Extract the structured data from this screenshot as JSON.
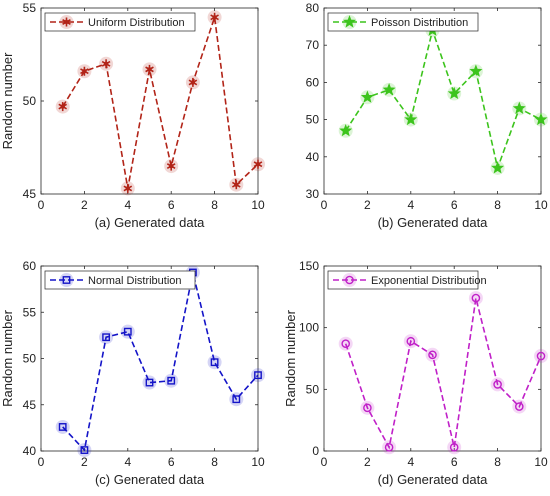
{
  "chart_data": [
    {
      "type": "line",
      "caption": "(a) Generated data",
      "ylabel": "Random number",
      "xlim": [
        0,
        10
      ],
      "ylim": [
        45,
        55
      ],
      "xticks": [
        "0",
        "2",
        "4",
        "6",
        "8",
        "10"
      ],
      "yticks": [
        "45",
        "50",
        "55"
      ],
      "legend_position": "top-left",
      "color": "#b22418",
      "marker": "asterisk",
      "series": [
        {
          "name": "Uniform Distribution",
          "x": [
            1,
            2,
            3,
            4,
            5,
            6,
            7,
            8,
            9,
            10
          ],
          "values": [
            49.7,
            51.6,
            52.0,
            45.3,
            51.7,
            46.5,
            51.0,
            54.5,
            45.5,
            46.6
          ]
        }
      ]
    },
    {
      "type": "line",
      "caption": "(b) Generated data",
      "ylabel": "",
      "xlim": [
        0,
        10
      ],
      "ylim": [
        30,
        80
      ],
      "xticks": [
        "0",
        "2",
        "4",
        "6",
        "8",
        "10"
      ],
      "yticks": [
        "30",
        "40",
        "50",
        "60",
        "70",
        "80"
      ],
      "legend_position": "top-left",
      "color": "#3cc41c",
      "marker": "star",
      "series": [
        {
          "name": "Poisson Distribution",
          "x": [
            1,
            2,
            3,
            4,
            5,
            6,
            7,
            8,
            9,
            10
          ],
          "values": [
            47,
            56,
            58,
            50,
            74,
            57,
            63,
            37,
            53,
            50
          ]
        }
      ]
    },
    {
      "type": "line",
      "caption": "(c) Generated data",
      "ylabel": "Random number",
      "xlim": [
        0,
        10
      ],
      "ylim": [
        40,
        60
      ],
      "xticks": [
        "0",
        "2",
        "4",
        "6",
        "8",
        "10"
      ],
      "yticks": [
        "40",
        "45",
        "50",
        "55",
        "60"
      ],
      "legend_position": "top-left",
      "color": "#1414c8",
      "marker": "square",
      "series": [
        {
          "name": "Normal Distribution",
          "x": [
            1,
            2,
            3,
            4,
            5,
            6,
            7,
            8,
            9,
            10
          ],
          "values": [
            42.6,
            40.1,
            52.3,
            52.9,
            47.4,
            47.6,
            59.3,
            49.6,
            45.6,
            48.2
          ]
        }
      ]
    },
    {
      "type": "line",
      "caption": "(d) Generated data",
      "ylabel": "Random number",
      "xlim": [
        0,
        10
      ],
      "ylim": [
        0,
        150
      ],
      "xticks": [
        "0",
        "2",
        "4",
        "6",
        "8",
        "10"
      ],
      "yticks": [
        "0",
        "50",
        "100",
        "150"
      ],
      "legend_position": "top-left",
      "color": "#c020c8",
      "marker": "circle",
      "series": [
        {
          "name": "Exponential Distribution",
          "x": [
            1,
            2,
            3,
            4,
            5,
            6,
            7,
            8,
            9,
            10
          ],
          "values": [
            87,
            35,
            3,
            89,
            78,
            3,
            124,
            54,
            36,
            77
          ]
        }
      ]
    }
  ]
}
